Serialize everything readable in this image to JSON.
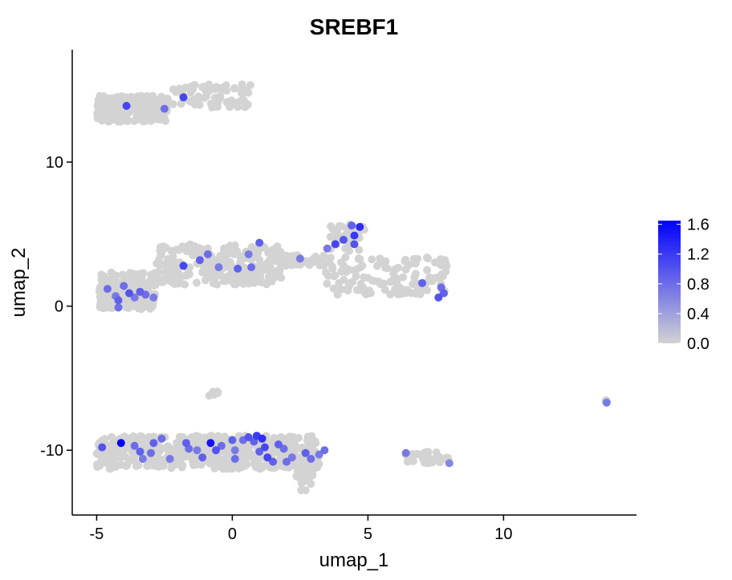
{
  "chart_data": {
    "type": "scatter",
    "title": "SREBF1",
    "xlabel": "umap_1",
    "ylabel": "umap_2",
    "xlim": [
      -5.9,
      14.9
    ],
    "ylim": [
      -14.5,
      17.8
    ],
    "x_ticks": [
      -5,
      0,
      5,
      10
    ],
    "x_tick_labels": [
      "-5",
      "0",
      "5",
      "10"
    ],
    "y_ticks": [
      -10,
      0,
      10
    ],
    "y_tick_labels": [
      "-10",
      "0",
      "10"
    ],
    "grid": false,
    "color_scale": {
      "low": "#d3d3d3",
      "high": "#0000ff",
      "min": 0.0,
      "max": 1.65,
      "ticks": [
        0.0,
        0.4,
        0.8,
        1.2,
        1.6
      ],
      "tick_labels": [
        "0.0",
        "0.4",
        "0.8",
        "1.2",
        "1.6"
      ],
      "legend_position": "right"
    },
    "background_clusters": [
      {
        "x0": -5.0,
        "x1": -2.4,
        "y0": 12.8,
        "y1": 14.6,
        "n": 240
      },
      {
        "x0": -2.4,
        "x1": 0.7,
        "y0": 13.8,
        "y1": 15.4,
        "n": 70
      },
      {
        "x0": -4.9,
        "x1": -2.8,
        "y0": -0.2,
        "y1": 2.4,
        "n": 180
      },
      {
        "x0": -2.8,
        "x1": 1.8,
        "y0": 1.5,
        "y1": 4.3,
        "n": 240
      },
      {
        "x0": 1.8,
        "x1": 3.4,
        "y0": 2.8,
        "y1": 3.6,
        "n": 50
      },
      {
        "x0": 3.4,
        "x1": 8.0,
        "y0": 0.8,
        "y1": 3.4,
        "n": 120
      },
      {
        "x0": 3.6,
        "x1": 4.9,
        "y0": 3.8,
        "y1": 5.8,
        "n": 40
      },
      {
        "x0": -0.9,
        "x1": -0.4,
        "y0": -6.3,
        "y1": -5.6,
        "n": 8
      },
      {
        "x0": -5.0,
        "x1": 3.2,
        "y0": -11.3,
        "y1": -9.0,
        "n": 500
      },
      {
        "x0": 2.3,
        "x1": 3.0,
        "y0": -12.9,
        "y1": -11.3,
        "n": 18
      },
      {
        "x0": 6.1,
        "x1": 8.0,
        "y0": -10.9,
        "y1": -10.1,
        "n": 30
      },
      {
        "x0": 13.7,
        "x1": 13.9,
        "y0": -6.6,
        "y1": -6.4,
        "n": 3
      }
    ],
    "points": [
      {
        "x": -3.9,
        "y": 13.9,
        "v": 1.1
      },
      {
        "x": -2.5,
        "y": 13.7,
        "v": 0.8
      },
      {
        "x": -1.8,
        "y": 14.5,
        "v": 1.1
      },
      {
        "x": -4.6,
        "y": 1.2,
        "v": 0.8
      },
      {
        "x": -4.3,
        "y": 0.7,
        "v": 0.7
      },
      {
        "x": -4.2,
        "y": 0.4,
        "v": 0.9
      },
      {
        "x": -4.0,
        "y": 1.4,
        "v": 0.8
      },
      {
        "x": -3.8,
        "y": 0.9,
        "v": 1.0
      },
      {
        "x": -3.6,
        "y": 0.6,
        "v": 0.7
      },
      {
        "x": -3.4,
        "y": 1.0,
        "v": 0.9
      },
      {
        "x": -3.2,
        "y": 0.8,
        "v": 0.8
      },
      {
        "x": -2.9,
        "y": 0.6,
        "v": 0.7
      },
      {
        "x": -4.2,
        "y": -0.1,
        "v": 0.8
      },
      {
        "x": -1.8,
        "y": 2.8,
        "v": 1.1
      },
      {
        "x": -1.2,
        "y": 3.2,
        "v": 0.9
      },
      {
        "x": -0.9,
        "y": 3.6,
        "v": 0.8
      },
      {
        "x": -0.5,
        "y": 2.7,
        "v": 0.7
      },
      {
        "x": 0.2,
        "y": 2.6,
        "v": 0.9
      },
      {
        "x": 0.6,
        "y": 3.6,
        "v": 0.7
      },
      {
        "x": 0.7,
        "y": 2.7,
        "v": 0.8
      },
      {
        "x": 1.0,
        "y": 4.4,
        "v": 0.9
      },
      {
        "x": 2.5,
        "y": 3.3,
        "v": 0.7
      },
      {
        "x": 3.8,
        "y": 4.3,
        "v": 1.1
      },
      {
        "x": 4.1,
        "y": 4.6,
        "v": 1.0
      },
      {
        "x": 4.5,
        "y": 4.9,
        "v": 1.2
      },
      {
        "x": 4.5,
        "y": 4.3,
        "v": 1.0
      },
      {
        "x": 4.7,
        "y": 5.5,
        "v": 1.3
      },
      {
        "x": 4.4,
        "y": 5.6,
        "v": 0.9
      },
      {
        "x": 3.5,
        "y": 4.0,
        "v": 0.7
      },
      {
        "x": 7.0,
        "y": 1.6,
        "v": 0.9
      },
      {
        "x": 7.7,
        "y": 1.3,
        "v": 0.8
      },
      {
        "x": 7.8,
        "y": 0.9,
        "v": 0.9
      },
      {
        "x": 7.6,
        "y": 0.6,
        "v": 1.0
      },
      {
        "x": -4.8,
        "y": -9.8,
        "v": 1.0
      },
      {
        "x": -4.1,
        "y": -9.5,
        "v": 1.65
      },
      {
        "x": -3.6,
        "y": -9.7,
        "v": 0.8
      },
      {
        "x": -3.4,
        "y": -10.1,
        "v": 0.9
      },
      {
        "x": -3.3,
        "y": -10.6,
        "v": 0.7
      },
      {
        "x": -3.0,
        "y": -10.2,
        "v": 0.8
      },
      {
        "x": -2.9,
        "y": -9.5,
        "v": 0.9
      },
      {
        "x": -2.6,
        "y": -9.2,
        "v": 0.8
      },
      {
        "x": -2.3,
        "y": -10.6,
        "v": 0.7
      },
      {
        "x": -1.6,
        "y": -9.9,
        "v": 0.8
      },
      {
        "x": -1.7,
        "y": -9.5,
        "v": 0.9
      },
      {
        "x": -1.3,
        "y": -10.0,
        "v": 0.7
      },
      {
        "x": -1.1,
        "y": -10.5,
        "v": 0.9
      },
      {
        "x": -0.8,
        "y": -9.5,
        "v": 1.5
      },
      {
        "x": -0.6,
        "y": -10.0,
        "v": 1.0
      },
      {
        "x": -0.4,
        "y": -9.7,
        "v": 0.8
      },
      {
        "x": 0.0,
        "y": -9.3,
        "v": 0.9
      },
      {
        "x": 0.1,
        "y": -10.0,
        "v": 0.7
      },
      {
        "x": 0.1,
        "y": -10.6,
        "v": 0.8
      },
      {
        "x": 0.4,
        "y": -9.3,
        "v": 0.8
      },
      {
        "x": 0.6,
        "y": -9.1,
        "v": 1.0
      },
      {
        "x": 0.8,
        "y": -9.4,
        "v": 0.9
      },
      {
        "x": 0.9,
        "y": -9.0,
        "v": 1.2
      },
      {
        "x": 1.1,
        "y": -9.2,
        "v": 1.3
      },
      {
        "x": 1.2,
        "y": -9.8,
        "v": 1.1
      },
      {
        "x": 1.0,
        "y": -10.1,
        "v": 0.9
      },
      {
        "x": 1.3,
        "y": -10.5,
        "v": 1.1
      },
      {
        "x": 1.5,
        "y": -10.8,
        "v": 0.9
      },
      {
        "x": 1.7,
        "y": -9.6,
        "v": 0.9
      },
      {
        "x": 1.9,
        "y": -9.9,
        "v": 0.8
      },
      {
        "x": 2.2,
        "y": -10.5,
        "v": 0.7
      },
      {
        "x": 2.0,
        "y": -10.8,
        "v": 0.8
      },
      {
        "x": 2.7,
        "y": -10.2,
        "v": 0.9
      },
      {
        "x": 2.9,
        "y": -10.6,
        "v": 0.8
      },
      {
        "x": 3.2,
        "y": -10.3,
        "v": 0.7
      },
      {
        "x": 3.4,
        "y": -10.0,
        "v": 0.8
      },
      {
        "x": 6.4,
        "y": -10.2,
        "v": 0.7
      },
      {
        "x": 8.0,
        "y": -10.9,
        "v": 0.6
      },
      {
        "x": 13.8,
        "y": -6.7,
        "v": 0.7
      }
    ]
  }
}
